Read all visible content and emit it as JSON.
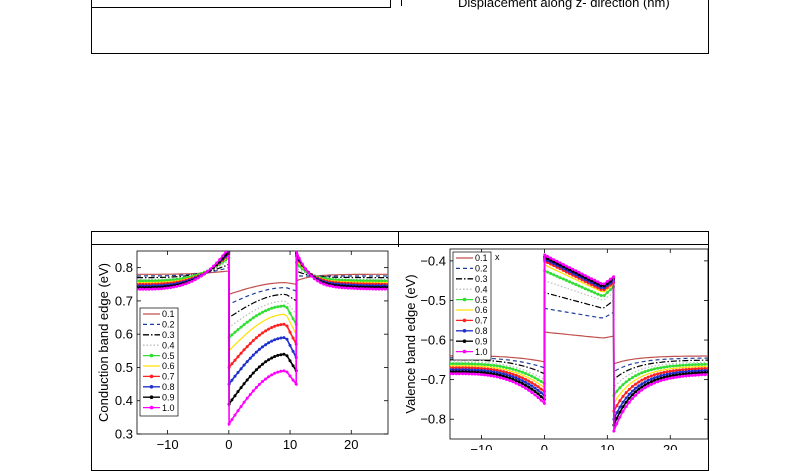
{
  "top_panel": {
    "xlabel_fragment": "Displacement along z- direction (nm)"
  },
  "chart_data": [
    {
      "type": "line",
      "ylabel": "Conduction band edge (eV)",
      "xlim": [
        -15,
        26
      ],
      "ylim": [
        0.3,
        0.85
      ],
      "xticks": [
        -10,
        0,
        10,
        20
      ],
      "yticks": [
        0.3,
        0.4,
        0.5,
        0.6,
        0.7,
        0.8
      ],
      "legend_position": "bottom-left",
      "legend_title": "",
      "series": [
        {
          "name": "0.1",
          "color": "#c0504d",
          "style": "solid",
          "marker": "none",
          "edge": 0.78,
          "peak": 0.79,
          "well_start": 0.72,
          "well_top": 0.755,
          "well_end": 0.75,
          "peak2": 0.76
        },
        {
          "name": "0.2",
          "color": "#1f3f99",
          "style": "dashed",
          "marker": "none",
          "edge": 0.775,
          "peak": 0.8,
          "well_start": 0.69,
          "well_top": 0.74,
          "well_end": 0.73,
          "peak2": 0.775
        },
        {
          "name": "0.3",
          "color": "#000000",
          "style": "dashdot",
          "marker": "none",
          "edge": 0.77,
          "peak": 0.81,
          "well_start": 0.65,
          "well_top": 0.72,
          "well_end": 0.7,
          "peak2": 0.79
        },
        {
          "name": "0.4",
          "color": "#bdbdbd",
          "style": "dotted",
          "marker": "none",
          "edge": 0.765,
          "peak": 0.82,
          "well_start": 0.62,
          "well_top": 0.7,
          "well_end": 0.66,
          "peak2": 0.8
        },
        {
          "name": "0.5",
          "color": "#33dd33",
          "style": "solid",
          "marker": "dot",
          "edge": 0.76,
          "peak": 0.83,
          "well_start": 0.59,
          "well_top": 0.685,
          "well_end": 0.63,
          "peak2": 0.815
        },
        {
          "name": "0.6",
          "color": "#ffe000",
          "style": "solid",
          "marker": "none",
          "edge": 0.755,
          "peak": 0.835,
          "well_start": 0.55,
          "well_top": 0.66,
          "well_end": 0.6,
          "peak2": 0.825
        },
        {
          "name": "0.7",
          "color": "#ff2020",
          "style": "solid",
          "marker": "dot",
          "edge": 0.75,
          "peak": 0.84,
          "well_start": 0.5,
          "well_top": 0.63,
          "well_end": 0.57,
          "peak2": 0.835
        },
        {
          "name": "0.8",
          "color": "#1f2fcc",
          "style": "solid",
          "marker": "dot",
          "edge": 0.745,
          "peak": 0.845,
          "well_start": 0.45,
          "well_top": 0.59,
          "well_end": 0.53,
          "peak2": 0.84
        },
        {
          "name": "0.9",
          "color": "#000000",
          "style": "solid",
          "marker": "dot",
          "edge": 0.74,
          "peak": 0.85,
          "well_start": 0.39,
          "well_top": 0.54,
          "well_end": 0.49,
          "peak2": 0.845
        },
        {
          "name": "1.0",
          "color": "#ff00ff",
          "style": "solid",
          "marker": "dot",
          "edge": 0.735,
          "peak": 0.86,
          "well_start": 0.33,
          "well_top": 0.49,
          "well_end": 0.45,
          "peak2": 0.85
        }
      ]
    },
    {
      "type": "line",
      "ylabel": "Valence band edge (eV)",
      "xlim": [
        -15,
        26
      ],
      "ylim": [
        -0.85,
        -0.37
      ],
      "xticks": [
        -10,
        0,
        10,
        20
      ],
      "yticks": [
        -0.8,
        -0.7,
        -0.6,
        -0.5,
        -0.4
      ],
      "legend_position": "top-left",
      "legend_title": "x",
      "series": [
        {
          "name": "0.1",
          "color": "#c0504d",
          "style": "solid",
          "marker": "none",
          "edge": -0.64,
          "dip": -0.655,
          "well_start": -0.58,
          "well_low": -0.595,
          "well_end": -0.59,
          "dip2": -0.66
        },
        {
          "name": "0.2",
          "color": "#1f3f99",
          "style": "dashed",
          "marker": "none",
          "edge": -0.645,
          "dip": -0.67,
          "well_start": -0.52,
          "well_low": -0.545,
          "well_end": -0.53,
          "dip2": -0.68
        },
        {
          "name": "0.3",
          "color": "#000000",
          "style": "dashdot",
          "marker": "none",
          "edge": -0.65,
          "dip": -0.685,
          "well_start": -0.48,
          "well_low": -0.52,
          "well_end": -0.5,
          "dip2": -0.7
        },
        {
          "name": "0.4",
          "color": "#bdbdbd",
          "style": "dotted",
          "marker": "none",
          "edge": -0.655,
          "dip": -0.7,
          "well_start": -0.45,
          "well_low": -0.5,
          "well_end": -0.48,
          "dip2": -0.72
        },
        {
          "name": "0.5",
          "color": "#33dd33",
          "style": "solid",
          "marker": "dot",
          "edge": -0.66,
          "dip": -0.71,
          "well_start": -0.425,
          "well_low": -0.49,
          "well_end": -0.465,
          "dip2": -0.74
        },
        {
          "name": "0.6",
          "color": "#ffe000",
          "style": "solid",
          "marker": "none",
          "edge": -0.665,
          "dip": -0.72,
          "well_start": -0.41,
          "well_low": -0.48,
          "well_end": -0.46,
          "dip2": -0.76
        },
        {
          "name": "0.7",
          "color": "#ff2020",
          "style": "solid",
          "marker": "dot",
          "edge": -0.67,
          "dip": -0.73,
          "well_start": -0.4,
          "well_low": -0.475,
          "well_end": -0.455,
          "dip2": -0.78
        },
        {
          "name": "0.8",
          "color": "#1f2fcc",
          "style": "solid",
          "marker": "dot",
          "edge": -0.675,
          "dip": -0.74,
          "well_start": -0.395,
          "well_low": -0.47,
          "well_end": -0.45,
          "dip2": -0.8
        },
        {
          "name": "0.9",
          "color": "#000000",
          "style": "solid",
          "marker": "dot",
          "edge": -0.68,
          "dip": -0.75,
          "well_start": -0.39,
          "well_low": -0.465,
          "well_end": -0.445,
          "dip2": -0.815
        },
        {
          "name": "1.0",
          "color": "#ff00ff",
          "style": "solid",
          "marker": "dot",
          "edge": -0.685,
          "dip": -0.76,
          "well_start": -0.385,
          "well_low": -0.46,
          "well_end": -0.44,
          "dip2": -0.83
        }
      ]
    }
  ]
}
